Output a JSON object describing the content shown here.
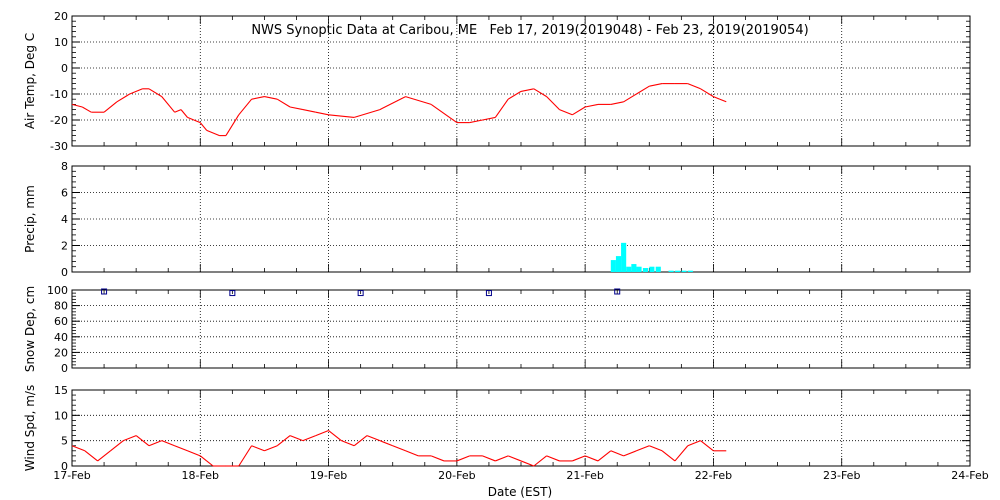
{
  "title": "NWS Synoptic Data at Caribou, ME   Feb 17, 2019(2019048) - Feb 23, 2019(2019054)",
  "x_axis_label": "Date (EST)",
  "x_tick_labels": [
    "17-Feb",
    "18-Feb",
    "19-Feb",
    "20-Feb",
    "21-Feb",
    "22-Feb",
    "23-Feb",
    "24-Feb"
  ],
  "colors": {
    "air_temp": "#ff0000",
    "wind": "#ff0000",
    "precip": "#00ffff",
    "snow": "#00008b",
    "grid": "#000000"
  },
  "chart_data": [
    {
      "type": "line",
      "name": "air-temp",
      "ylabel": "Air Temp, Deg C",
      "xlim": [
        0,
        7
      ],
      "ylim": [
        -30,
        20
      ],
      "yticks": [
        20,
        10,
        0,
        -10,
        -20,
        -30
      ],
      "grid": true,
      "x": [
        0.0,
        0.08,
        0.15,
        0.25,
        0.35,
        0.45,
        0.55,
        0.6,
        0.7,
        0.8,
        0.85,
        0.9,
        0.95,
        1.0,
        1.05,
        1.15,
        1.2,
        1.3,
        1.4,
        1.5,
        1.6,
        1.7,
        1.8,
        1.9,
        2.0,
        2.2,
        2.4,
        2.6,
        2.8,
        3.0,
        3.1,
        3.2,
        3.3,
        3.4,
        3.5,
        3.6,
        3.7,
        3.8,
        3.9,
        4.0,
        4.1,
        4.2,
        4.3,
        4.4,
        4.5,
        4.6,
        4.7,
        4.8,
        4.9,
        5.0,
        5.05,
        5.1
      ],
      "y": [
        -14,
        -15,
        -17,
        -17,
        -13,
        -10,
        -8,
        -8,
        -11,
        -17,
        -16,
        -19,
        -20,
        -21,
        -24,
        -26,
        -26,
        -18,
        -12,
        -11,
        -12,
        -15,
        -16,
        -17,
        -18,
        -19,
        -16,
        -11,
        -14,
        -21,
        -21,
        -20,
        -19,
        -12,
        -9,
        -8,
        -11,
        -16,
        -18,
        -15,
        -14,
        -14,
        -13,
        -10,
        -7,
        -6,
        -6,
        -6,
        -8,
        -11,
        -12,
        -13
      ]
    },
    {
      "type": "bar",
      "name": "precip",
      "ylabel": "Precip, mm",
      "xlim": [
        0,
        7
      ],
      "ylim": [
        0,
        8
      ],
      "yticks": [
        8,
        6,
        4,
        2,
        0
      ],
      "grid": true,
      "x": [
        4.2,
        4.24,
        4.28,
        4.32,
        4.36,
        4.4,
        4.45,
        4.5,
        4.55,
        4.65,
        4.7,
        4.75,
        4.8
      ],
      "values": [
        0.9,
        1.2,
        2.2,
        0.4,
        0.6,
        0.4,
        0.3,
        0.4,
        0.4,
        0.1,
        0.1,
        0.1,
        0.1
      ]
    },
    {
      "type": "scatter",
      "name": "snow-depth",
      "ylabel": "Snow Dep, cm",
      "xlim": [
        0,
        7
      ],
      "ylim": [
        0,
        100
      ],
      "yticks": [
        100,
        80,
        60,
        40,
        20,
        0
      ],
      "grid": true,
      "x": [
        0.25,
        1.25,
        2.25,
        3.25,
        4.25
      ],
      "y": [
        100,
        98,
        98,
        98,
        100
      ]
    },
    {
      "type": "line",
      "name": "wind-speed",
      "ylabel": "Wind Spd, m/s",
      "xlim": [
        0,
        7
      ],
      "ylim": [
        0,
        15
      ],
      "yticks": [
        15,
        10,
        5,
        0
      ],
      "grid": true,
      "x": [
        0.0,
        0.1,
        0.2,
        0.3,
        0.4,
        0.5,
        0.6,
        0.7,
        0.8,
        0.9,
        1.0,
        1.05,
        1.1,
        1.2,
        1.3,
        1.4,
        1.5,
        1.6,
        1.7,
        1.8,
        1.9,
        2.0,
        2.1,
        2.2,
        2.3,
        2.4,
        2.5,
        2.6,
        2.7,
        2.8,
        2.9,
        3.0,
        3.1,
        3.2,
        3.3,
        3.4,
        3.5,
        3.6,
        3.7,
        3.8,
        3.9,
        4.0,
        4.1,
        4.2,
        4.3,
        4.4,
        4.5,
        4.6,
        4.7,
        4.8,
        4.9,
        5.0,
        5.1
      ],
      "y": [
        4,
        3,
        1,
        3,
        5,
        6,
        4,
        5,
        4,
        3,
        2,
        1,
        0,
        0,
        0,
        4,
        3,
        4,
        6,
        5,
        6,
        7,
        5,
        4,
        6,
        5,
        4,
        3,
        2,
        2,
        1,
        1,
        2,
        2,
        1,
        2,
        1,
        0,
        2,
        1,
        1,
        2,
        1,
        3,
        2,
        3,
        4,
        3,
        1,
        4,
        5,
        3,
        3
      ]
    }
  ]
}
